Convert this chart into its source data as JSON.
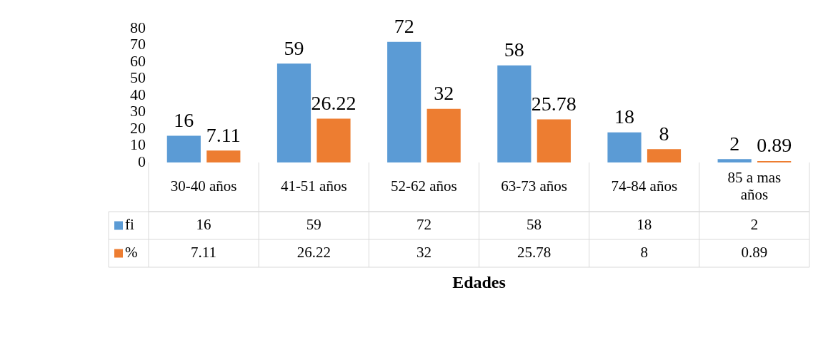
{
  "chart_data": {
    "type": "bar",
    "xlabel": "Edades",
    "categories": [
      "30-40 años",
      "41-51 años",
      "52-62 años",
      "63-73 años",
      "74-84 años",
      "85 a mas años"
    ],
    "series": [
      {
        "name": "fi",
        "color": "#5b9bd5",
        "values": [
          16,
          59,
          72,
          58,
          18,
          2
        ],
        "value_labels": [
          "16",
          "59",
          "72",
          "58",
          "18",
          "2"
        ]
      },
      {
        "name": "%",
        "color": "#ed7d31",
        "values": [
          7.11,
          26.22,
          32,
          25.78,
          8,
          0.89
        ],
        "value_labels": [
          "7.11",
          "26.22",
          "32",
          "25.78",
          "8",
          "0.89"
        ]
      }
    ],
    "annotations": [
      "16",
      "59",
      "72",
      "58",
      "18",
      "2",
      "7.11",
      "26.22",
      "32",
      "25.78",
      "8",
      "0.89"
    ],
    "ylim": [
      0,
      80
    ],
    "yticks": [
      0,
      10,
      20,
      30,
      40,
      50,
      60,
      70,
      80
    ],
    "grid": false,
    "legend": "bottom left",
    "data_labels": true
  }
}
